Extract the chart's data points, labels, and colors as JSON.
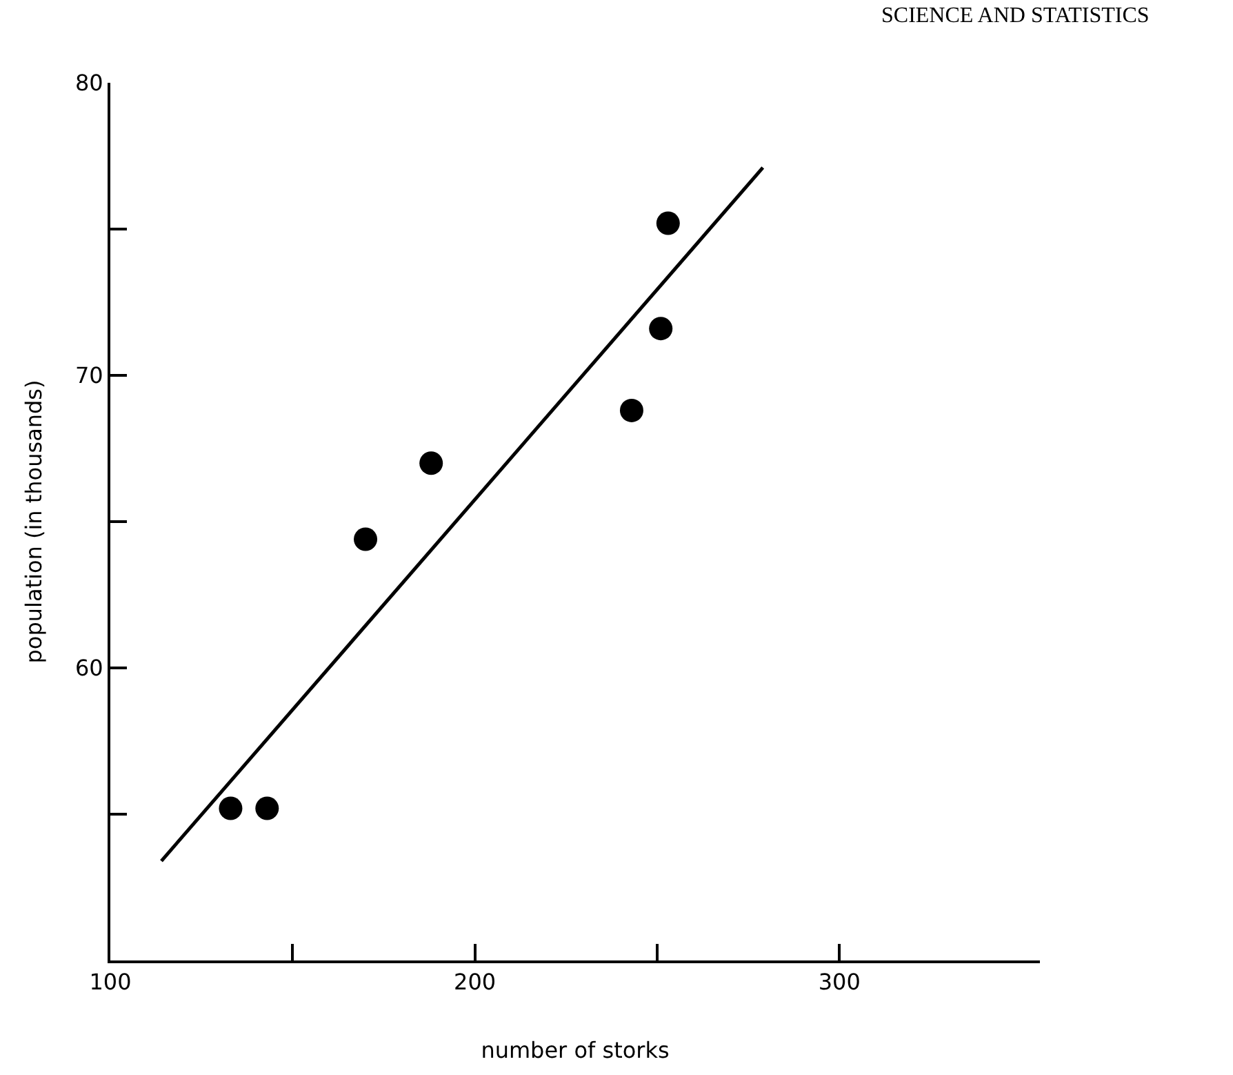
{
  "chart_data": {
    "type": "scatter",
    "xlabel": "number of storks",
    "ylabel": "population (in thousands)",
    "annotations": [
      "SCIENCE AND STATISTICS"
    ],
    "xlim": [
      100,
      355
    ],
    "ylim": [
      50,
      80
    ],
    "xticks": [
      100,
      {
        "value": 150,
        "label": null
      },
      200,
      {
        "value": 250,
        "label": null
      },
      300
    ],
    "yticks": [
      {
        "value": 55,
        "label": null
      },
      60,
      {
        "value": 65,
        "label": null
      },
      70,
      {
        "value": 75,
        "label": null
      },
      80
    ],
    "marker": "circle",
    "series": [
      {
        "color": "#000000",
        "x": [
          133,
          143,
          170,
          188,
          243,
          251,
          253
        ],
        "values": [
          55.2,
          55.2,
          64.4,
          67.0,
          68.8,
          71.6,
          75.2
        ]
      },
      {
        "type": "line",
        "color": "#000000",
        "marker": "none",
        "line_style": "solid",
        "x": [
          114,
          279
        ],
        "values": [
          53.4,
          77.1
        ]
      }
    ]
  }
}
